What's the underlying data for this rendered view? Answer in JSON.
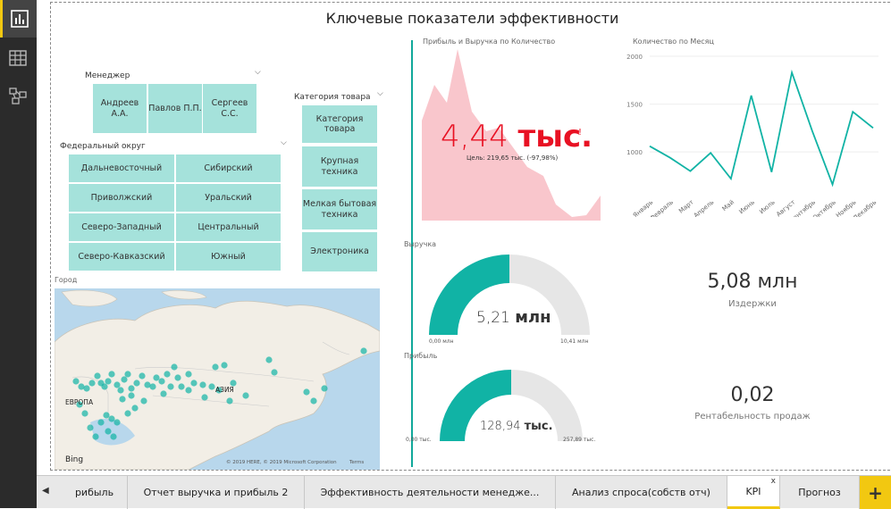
{
  "nav": {
    "items": [
      {
        "name": "report-view-icon",
        "active": true
      },
      {
        "name": "data-view-icon",
        "active": false
      },
      {
        "name": "model-view-icon",
        "active": false
      }
    ]
  },
  "report": {
    "title": "Ключевые показатели эффективности"
  },
  "slicers": {
    "manager": {
      "title": "Менеджер",
      "items": [
        "Андреев А.А.",
        "Павлов П.П.",
        "Сергеев С.С."
      ]
    },
    "district": {
      "title": "Федеральный округ",
      "items": [
        "Дальневосточный",
        "Сибирский",
        "Приволжский",
        "Уральский",
        "Северо-Западный",
        "Центральный",
        "Северо-Кавказский",
        "Южный"
      ]
    },
    "category": {
      "title": "Категория товара",
      "items": [
        "Категория товара",
        "Крупная техника",
        "Мелкая бытовая техника",
        "Электроника"
      ]
    }
  },
  "map": {
    "title": "Город",
    "label_europe": "ЕВРОПА",
    "label_asia": "АЗИЯ",
    "bing": "Bing",
    "copyright": "© 2019 HERE, © 2019 Microsoft Corporation",
    "terms": "Terms"
  },
  "kpi_area": {
    "title": "Прибыль и Выручка по Количество",
    "value_num": "4,44",
    "value_unit": "тыс.",
    "alert": "!",
    "goal_text": "Цель: 219,65 тыс. (-97,98%)"
  },
  "revenue_gauge": {
    "title": "Выручка",
    "value_num": "5,21",
    "value_unit": "млн",
    "min": "0,00 млн",
    "max": "10,41 млн",
    "fraction": 0.5
  },
  "profit_gauge": {
    "title": "Прибыль",
    "value_num": "128,94",
    "value_unit": "тыс.",
    "min": "0,00 тыс.",
    "max": "257,89 тыс.",
    "fraction": 0.5
  },
  "costs_card": {
    "value": "5,08 млн",
    "label": "Издержки"
  },
  "margin_card": {
    "value": "0,02",
    "label": "Рентабельность продаж"
  },
  "chart_data": {
    "type": "line",
    "title": "Количество по Месяц",
    "categories": [
      "Январь",
      "Февраль",
      "Март",
      "Апрель",
      "Май",
      "Июнь",
      "Июль",
      "Август",
      "Сентябрь",
      "Октябрь",
      "Ноябрь",
      "Декабрь"
    ],
    "values": [
      1060,
      940,
      800,
      990,
      720,
      1590,
      790,
      1830,
      1220,
      660,
      1420,
      1250
    ],
    "yticks": [
      1000,
      1500,
      2000
    ],
    "ylim": [
      600,
      2000
    ],
    "color": "#11b3a5"
  },
  "tabs": {
    "items": [
      "рибыль",
      "Отчет выручка и прибыль 2",
      "Эффективность деятельности менедже...",
      "Анализ спроса(собств отч)",
      "KPI",
      "Прогноз"
    ],
    "active": "KPI",
    "close": "x",
    "add": "+",
    "scroll_left": "◀"
  },
  "colors": {
    "teal": "#11b3a5",
    "tile": "#a5e2db",
    "area_pink": "#f9c6cc",
    "kpi_red": "#e81123",
    "gauge_gray": "#e6e6e6",
    "accent_yellow": "#f2c811"
  }
}
